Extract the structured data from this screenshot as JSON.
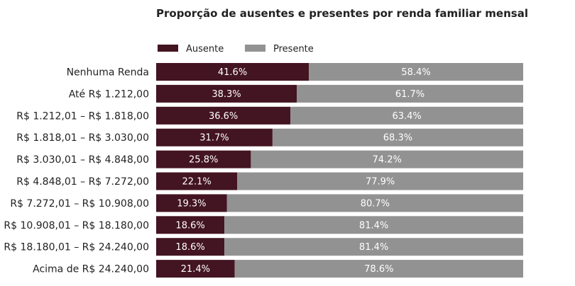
{
  "chart_data": {
    "type": "bar",
    "orientation": "horizontal",
    "stacked": true,
    "normalized": true,
    "title": "Proporção de ausentes e presentes por renda familiar mensal",
    "xlabel": "",
    "ylabel": "",
    "xlim": [
      0,
      100
    ],
    "grid": false,
    "legend_position": "top-left",
    "categories": [
      "Nenhuma Renda",
      "Até R$ 1.212,00",
      "R$ 1.212,01 – R$ 1.818,00",
      "R$ 1.818,01 – R$ 3.030,00",
      "R$ 3.030,01 – R$ 4.848,00",
      "R$ 4.848,01 – R$ 7.272,00",
      "R$ 7.272,01 – R$ 10.908,00",
      "R$ 10.908,01 – R$ 18.180,00",
      "R$ 18.180,01 – R$ 24.240,00",
      "Acima de R$ 24.240,00"
    ],
    "series": [
      {
        "name": "Ausente",
        "color": "#431421",
        "values": [
          41.6,
          38.3,
          36.6,
          31.7,
          25.8,
          22.1,
          19.3,
          18.6,
          18.6,
          21.4
        ],
        "labels": [
          "41.6%",
          "38.3%",
          "36.6%",
          "31.7%",
          "25.8%",
          "22.1%",
          "19.3%",
          "18.6%",
          "18.6%",
          "21.4%"
        ]
      },
      {
        "name": "Presente",
        "color": "#929293",
        "values": [
          58.4,
          61.7,
          63.4,
          68.3,
          74.2,
          77.9,
          80.7,
          81.4,
          81.4,
          78.6
        ],
        "labels": [
          "58.4%",
          "61.7%",
          "63.4%",
          "68.3%",
          "74.2%",
          "77.9%",
          "80.7%",
          "81.4%",
          "81.4%",
          "78.6%"
        ]
      }
    ]
  }
}
